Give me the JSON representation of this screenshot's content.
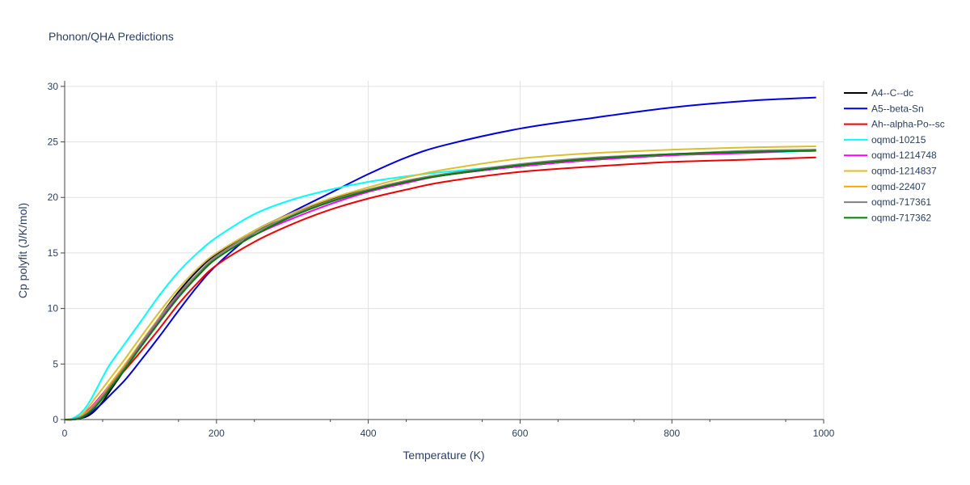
{
  "chart_data": {
    "type": "line",
    "title": "Phonon/QHA Predictions",
    "xlabel": "Temperature (K)",
    "ylabel": "Cp polyfit (J/K/mol)",
    "xlim": [
      0,
      1000
    ],
    "ylim": [
      0,
      30.5
    ],
    "xticks": [
      0,
      200,
      400,
      600,
      800,
      1000
    ],
    "yticks": [
      0,
      5,
      10,
      15,
      20,
      25,
      30
    ],
    "grid": true,
    "legend_position": "right",
    "x": [
      0,
      10,
      20,
      30,
      40,
      50,
      60,
      80,
      100,
      125,
      150,
      175,
      200,
      250,
      300,
      350,
      400,
      450,
      500,
      600,
      700,
      800,
      900,
      990
    ],
    "series": [
      {
        "name": "A4--C--dc",
        "color": "#000000",
        "values": [
          0,
          0,
          0.1,
          0.3,
          0.8,
          1.6,
          2.6,
          4.6,
          6.7,
          9.2,
          11.5,
          13.4,
          14.9,
          17.0,
          18.6,
          19.8,
          20.7,
          21.4,
          22.0,
          22.8,
          23.4,
          23.8,
          24.1,
          24.2
        ]
      },
      {
        "name": "A5--beta-Sn",
        "color": "#0000dd",
        "values": [
          0,
          0,
          0.1,
          0.4,
          0.9,
          1.5,
          2.2,
          3.6,
          5.3,
          7.5,
          9.8,
          12.0,
          13.9,
          16.8,
          18.7,
          20.4,
          22.1,
          23.6,
          24.7,
          26.2,
          27.2,
          28.1,
          28.7,
          29.0
        ]
      },
      {
        "name": "Ah--alpha-Po--sc",
        "color": "#ee0000",
        "values": [
          0,
          0,
          0.2,
          0.7,
          1.5,
          2.3,
          3.0,
          4.5,
          6.1,
          8.2,
          10.4,
          12.3,
          13.9,
          16.0,
          17.6,
          18.9,
          19.9,
          20.7,
          21.4,
          22.3,
          22.8,
          23.2,
          23.4,
          23.6
        ]
      },
      {
        "name": "oqmd-10215",
        "color": "#00ffff",
        "values": [
          0,
          0.1,
          0.5,
          1.3,
          2.5,
          3.8,
          5.0,
          6.9,
          8.8,
          11.2,
          13.3,
          15.0,
          16.4,
          18.5,
          19.8,
          20.7,
          21.4,
          21.9,
          22.3,
          22.9,
          23.4,
          23.8,
          24.0,
          24.2
        ]
      },
      {
        "name": "oqmd-1214748",
        "color": "#ff00ff",
        "values": [
          0,
          0,
          0.3,
          0.8,
          1.5,
          2.3,
          3.2,
          4.9,
          6.7,
          9.0,
          11.1,
          12.9,
          14.5,
          16.6,
          18.1,
          19.4,
          20.5,
          21.3,
          22.0,
          22.8,
          23.4,
          23.8,
          24.0,
          24.3
        ]
      },
      {
        "name": "oqmd-1214837",
        "color": "#dcbf2f",
        "values": [
          0,
          0,
          0.3,
          1.0,
          1.9,
          2.8,
          3.7,
          5.5,
          7.4,
          9.7,
          11.8,
          13.6,
          15.0,
          17.0,
          18.6,
          19.9,
          20.9,
          21.8,
          22.5,
          23.5,
          24.0,
          24.3,
          24.5,
          24.6
        ]
      },
      {
        "name": "oqmd-22407",
        "color": "#ffa500",
        "values": [
          0,
          0,
          0.2,
          0.7,
          1.4,
          2.2,
          3.2,
          5.0,
          6.9,
          9.2,
          11.3,
          13.1,
          14.7,
          16.8,
          18.4,
          19.7,
          20.7,
          21.5,
          22.1,
          22.9,
          23.5,
          23.9,
          24.1,
          24.3
        ]
      },
      {
        "name": "oqmd-717361",
        "color": "#808080",
        "values": [
          0,
          0,
          0.2,
          0.6,
          1.3,
          2.1,
          3.0,
          4.8,
          6.8,
          9.1,
          11.3,
          13.1,
          14.7,
          16.8,
          18.4,
          19.7,
          20.7,
          21.5,
          22.1,
          23.0,
          23.6,
          23.9,
          24.2,
          24.3
        ]
      },
      {
        "name": "oqmd-717362",
        "color": "#008000",
        "values": [
          0,
          0,
          0.1,
          0.5,
          1.1,
          1.9,
          2.8,
          4.6,
          6.5,
          8.8,
          11.0,
          12.9,
          14.5,
          16.6,
          18.3,
          19.6,
          20.6,
          21.4,
          22.0,
          22.9,
          23.5,
          23.9,
          24.1,
          24.2
        ]
      }
    ]
  }
}
